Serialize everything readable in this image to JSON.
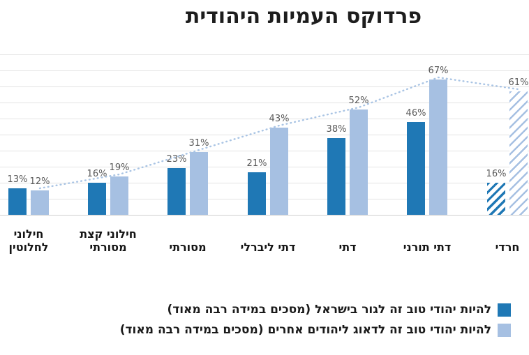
{
  "title": "פרדוקס העמיות היהודית",
  "chart_data": {
    "type": "bar",
    "direction": "rtl",
    "title": "פרדוקס העמיות היהודית",
    "value_suffix": "%",
    "ylim": [
      0,
      80
    ],
    "grid": true,
    "categories": [
      "חילוני לחלוטין",
      "חילוני קצת מסורתי",
      "מסורתי",
      "דתי ליברלי",
      "דתי",
      "דתי תורני",
      "חרדי"
    ],
    "categories_lines": [
      [
        "חילוני",
        "לחלוטין"
      ],
      [
        "חילוני קצת",
        "מסורתי"
      ],
      [
        "מסורתי"
      ],
      [
        "דתי ליברלי"
      ],
      [
        "דתי"
      ],
      [
        "דתי תורני"
      ],
      [
        "חרדי"
      ]
    ],
    "series": [
      {
        "name": "להיות יהודי טוב זה לגור בישראל (מסכים במידה רבה מאוד)",
        "color": "#1F78B5",
        "values": [
          13,
          16,
          23,
          21,
          38,
          46,
          16
        ]
      },
      {
        "name": "להיות יהודי טוב זה לדאוג ליהודים אחרים (מסכים במידה רבה מאוד)",
        "color": "#A6C0E2",
        "values": [
          12,
          19,
          31,
          43,
          52,
          67,
          61
        ]
      }
    ],
    "hatched_categories": [
      "חרדי"
    ],
    "trendline": {
      "style": "dotted",
      "color": "#A9C4E4",
      "follows": "tops of light-blue series"
    }
  },
  "legend": {
    "items": [
      {
        "label": "להיות יהודי טוב זה לגור בישראל (מסכים במידה רבה מאוד)",
        "color": "#1F78B5"
      },
      {
        "label": "להיות יהודי טוב זה לדאוג ליהודים אחרים (מסכים במידה רבה מאוד)",
        "color": "#A6C0E2"
      }
    ]
  }
}
